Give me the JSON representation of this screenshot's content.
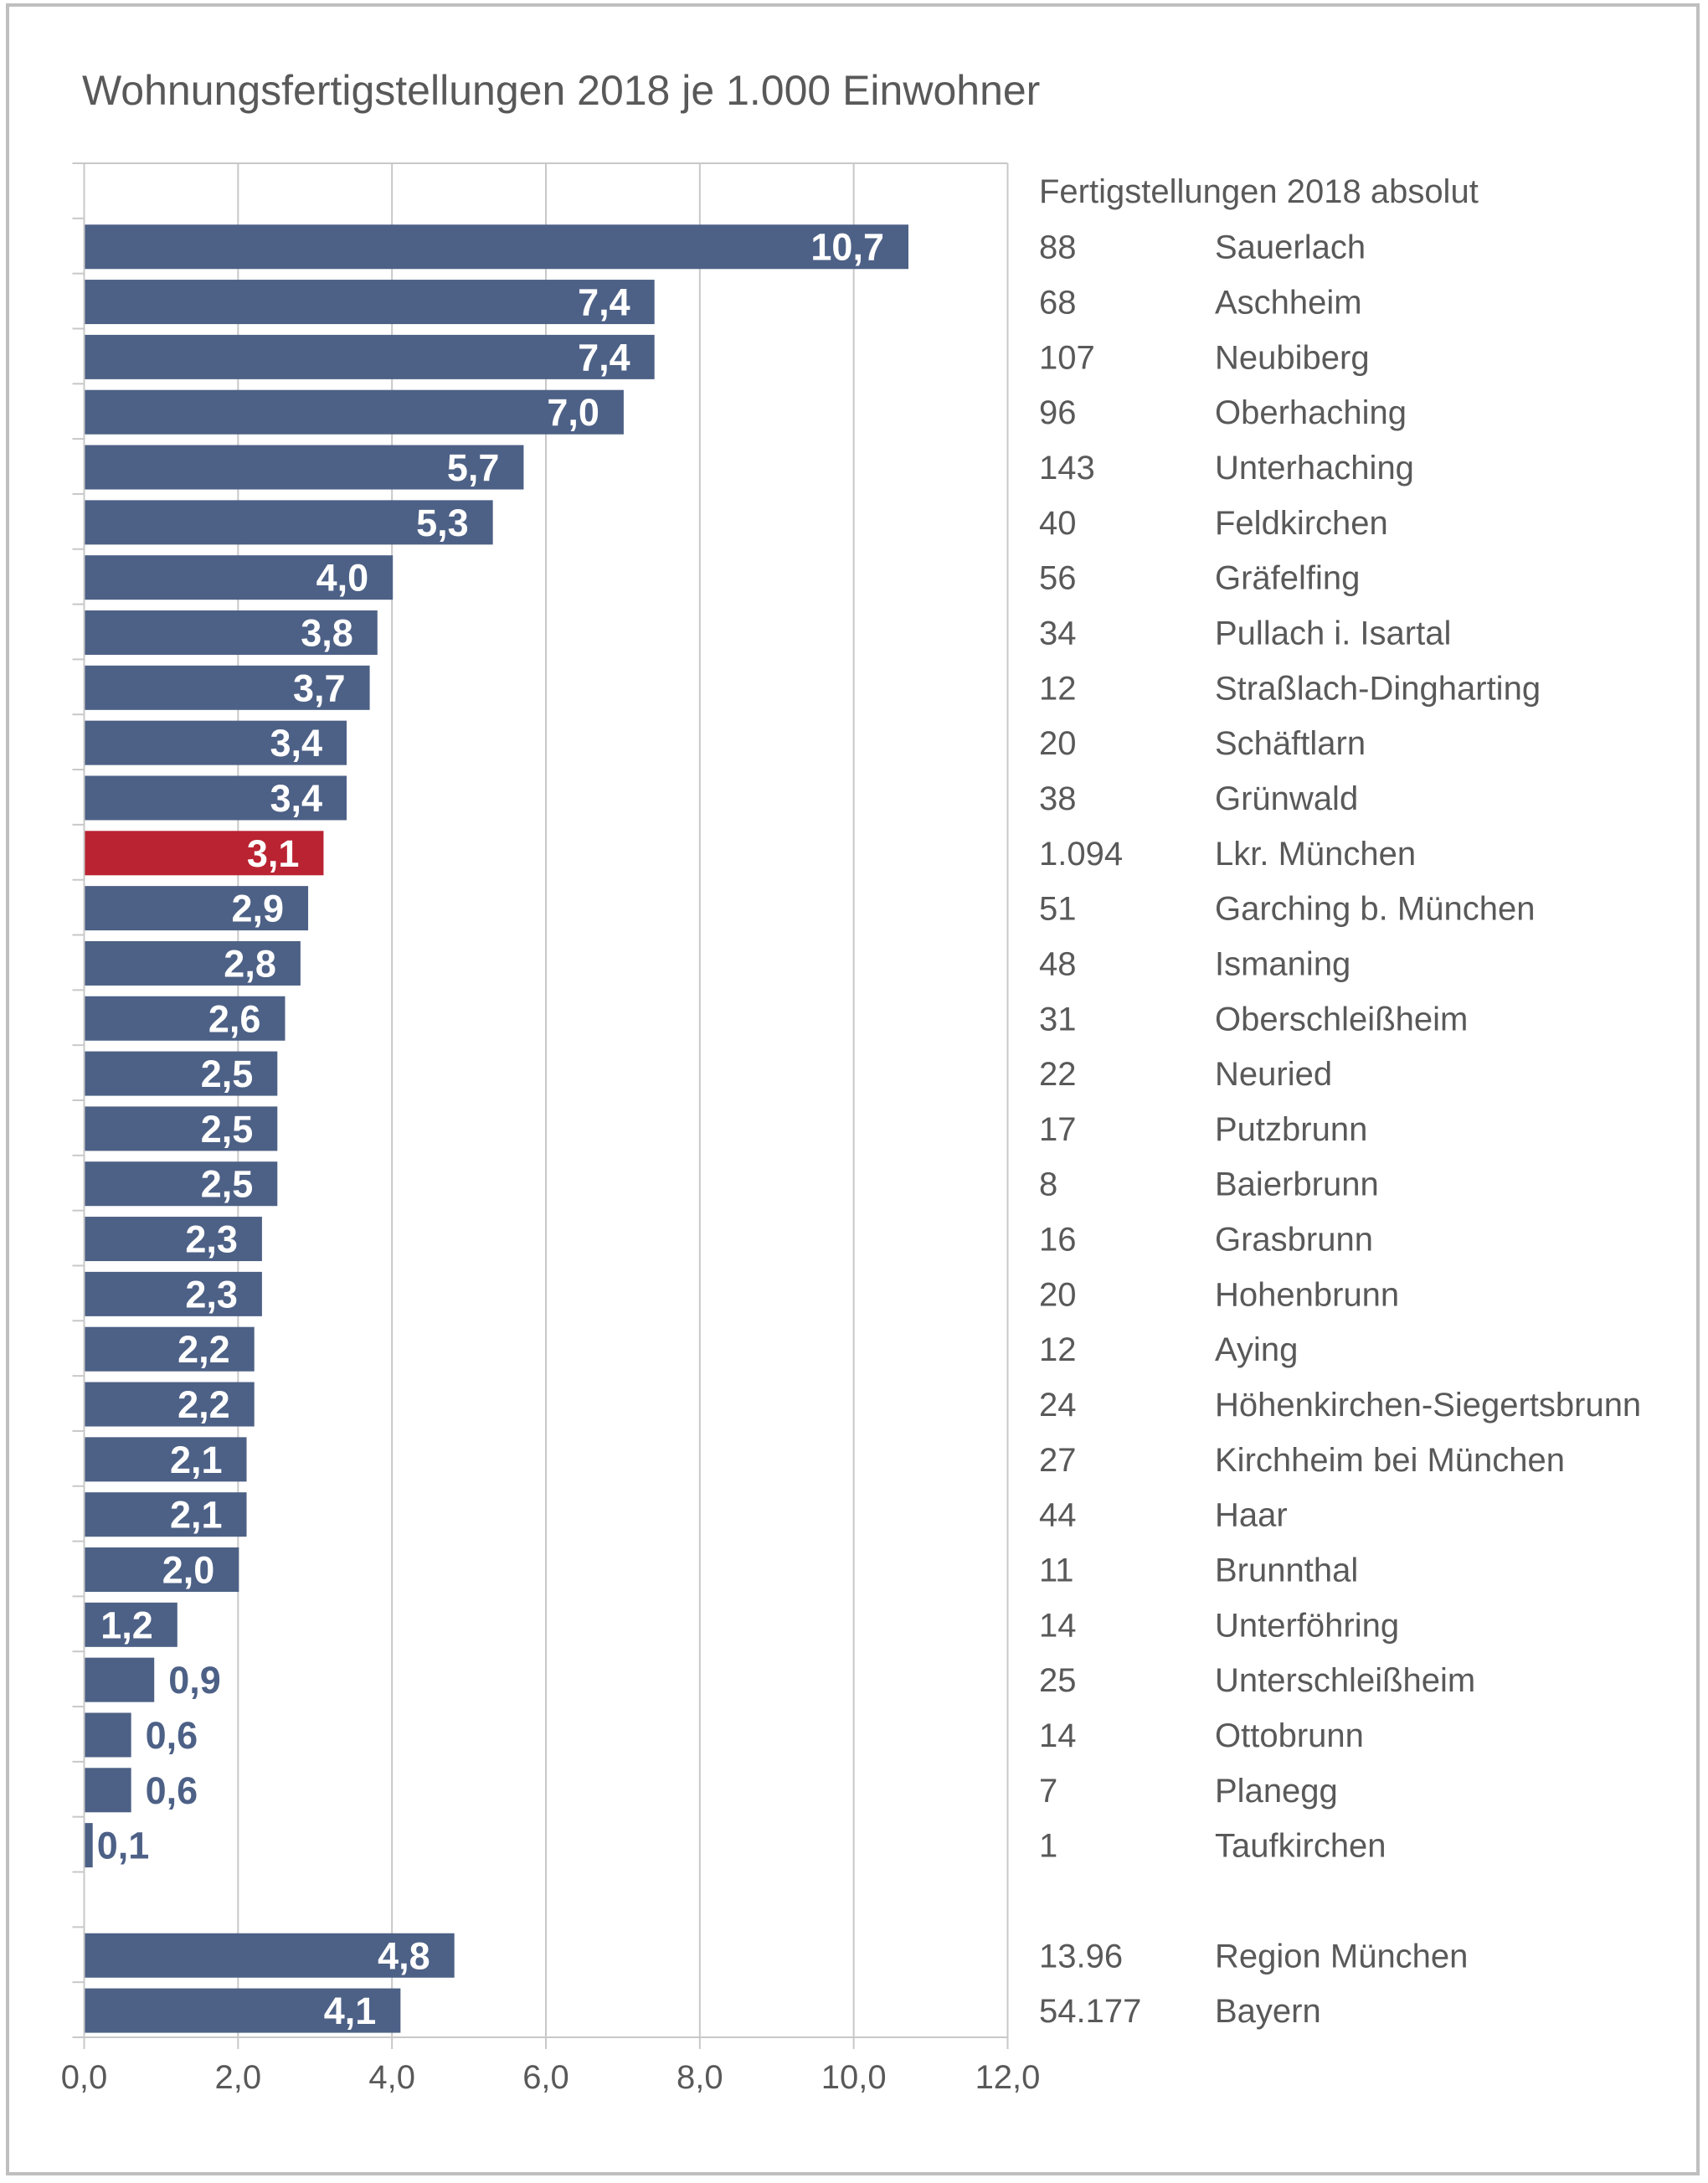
{
  "chart_data": {
    "type": "bar",
    "orientation": "horizontal",
    "title": "Wohnungsfertigstellungen 2018 je 1.000 Einwohner",
    "xlabel": "",
    "ylabel": "",
    "xlim": [
      0,
      12
    ],
    "x_ticks": [
      "0,0",
      "2,0",
      "4,0",
      "6,0",
      "8,0",
      "10,0",
      "12,0"
    ],
    "x_tick_values": [
      0,
      2,
      4,
      6,
      8,
      10,
      12
    ],
    "grid": true,
    "legend": "none",
    "colors": {
      "default_bar": "#4d6086",
      "highlight_bar": "#ba2432",
      "text": "#595959",
      "grid": "#c8c8c8",
      "frame": "#bfbfbf"
    },
    "side_table_header": "Fertigstellungen 2018 absolut",
    "categories": [
      "Sauerlach",
      "Aschheim",
      "Neubiberg",
      "Oberhaching",
      "Unterhaching",
      "Feldkirchen",
      "Gräfelfing",
      "Pullach i. Isartal",
      "Straßlach-Dingharting",
      "Schäftlarn",
      "Grünwald",
      "Lkr. München",
      "Garching b. München",
      "Ismaning",
      "Oberschleißheim",
      "Neuried",
      "Putzbrunn",
      "Baierbrunn",
      "Grasbrunn",
      "Hohenbrunn",
      "Aying",
      "Höhenkirchen-Siegertsbrunn",
      "Kirchheim bei München",
      "Haar",
      "Brunnthal",
      "Unterföhring",
      "Unterschleißheim",
      "Ottobrunn",
      "Planegg",
      "Taufkirchen",
      "Region München",
      "Bayern"
    ],
    "series": [
      {
        "name": "Wohnungsfertigstellungen 2018 je 1.000 Einwohner",
        "values": [
          10.7,
          7.4,
          7.4,
          7.0,
          5.7,
          5.3,
          4.0,
          3.8,
          3.7,
          3.4,
          3.4,
          3.1,
          2.9,
          2.8,
          2.6,
          2.5,
          2.5,
          2.5,
          2.3,
          2.3,
          2.2,
          2.2,
          2.1,
          2.1,
          2.0,
          1.2,
          0.9,
          0.6,
          0.6,
          0.1,
          4.8,
          4.1
        ],
        "labels": [
          "10,7",
          "7,4",
          "7,4",
          "7,0",
          "5,7",
          "5,3",
          "4,0",
          "3,8",
          "3,7",
          "3,4",
          "3,4",
          "3,1",
          "2,9",
          "2,8",
          "2,6",
          "2,5",
          "2,5",
          "2,5",
          "2,3",
          "2,3",
          "2,2",
          "2,2",
          "2,1",
          "2,1",
          "2,0",
          "1,2",
          "0,9",
          "0,6",
          "0,6",
          "0,1",
          "4,8",
          "4,1"
        ]
      },
      {
        "name": "Fertigstellungen 2018 absolut",
        "values": [
          "88",
          "68",
          "107",
          "96",
          "143",
          "40",
          "56",
          "34",
          "12",
          "20",
          "38",
          "1.094",
          "51",
          "48",
          "31",
          "22",
          "17",
          "8",
          "16",
          "20",
          "12",
          "24",
          "27",
          "44",
          "11",
          "14",
          "25",
          "14",
          "7",
          "1",
          "13.96",
          "54.177"
        ]
      }
    ],
    "highlight_category": "Lkr. München",
    "group_gap_after_index": 29
  }
}
